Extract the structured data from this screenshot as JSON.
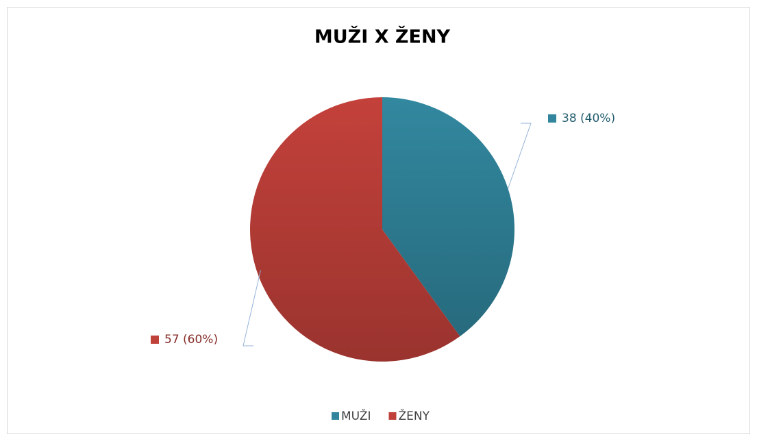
{
  "chart_data": {
    "type": "pie",
    "title": "MUŽI X ŽENY",
    "categories": [
      "MUŽI",
      "ŽENY"
    ],
    "values": [
      38,
      57
    ],
    "value_labels": [
      "38 (40%)",
      "57 (60%)"
    ],
    "colors": [
      "#31859c",
      "#c0403a"
    ],
    "legend": "bottom"
  }
}
